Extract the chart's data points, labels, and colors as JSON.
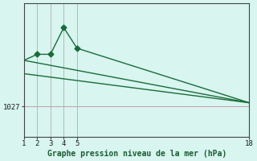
{
  "bg_color": "#d8f5f0",
  "line_color": "#1a6b3a",
  "grid_color": "#b8b8b8",
  "hgrid_color": "#c8a0a0",
  "xlabel": "Graphe pression niveau de la mer (hPa)",
  "xlabel_color": "#1a5c30",
  "xlim": [
    1,
    18
  ],
  "ylim": [
    1024.5,
    1035.5
  ],
  "xticks": [
    1,
    2,
    3,
    4,
    5,
    18
  ],
  "yticks": [
    1027
  ],
  "line1_x": [
    2,
    3,
    4,
    5
  ],
  "line1_y": [
    1031.3,
    1031.3,
    1033.5,
    1031.8
  ],
  "line2_x": [
    1,
    18
  ],
  "line2_y": [
    1030.8,
    1027.3
  ],
  "line3_x": [
    1,
    18
  ],
  "line3_y": [
    1029.7,
    1027.3
  ],
  "vlines_x": [
    1,
    2,
    3,
    4,
    5
  ],
  "hline_y": 1027,
  "marker": "D",
  "marker_size": 3.5,
  "line_width": 1.0
}
